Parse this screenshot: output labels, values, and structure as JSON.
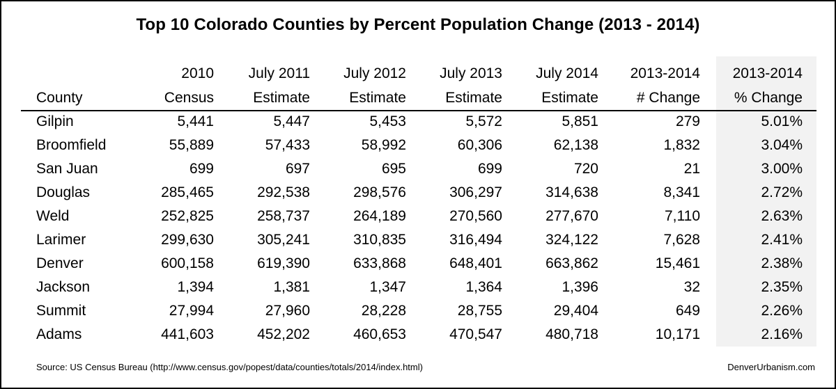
{
  "title": "Top 10 Colorado Counties by Percent Population Change (2013 - 2014)",
  "columns": [
    {
      "line1": "",
      "line2": "County"
    },
    {
      "line1": "2010",
      "line2": "Census"
    },
    {
      "line1": "July 2011",
      "line2": "Estimate"
    },
    {
      "line1": "July 2012",
      "line2": "Estimate"
    },
    {
      "line1": "July 2013",
      "line2": "Estimate"
    },
    {
      "line1": "July 2014",
      "line2": "Estimate"
    },
    {
      "line1": "2013-2014",
      "line2": "# Change"
    },
    {
      "line1": "2013-2014",
      "line2": "% Change"
    }
  ],
  "rows": [
    [
      "Gilpin",
      "5,441",
      "5,447",
      "5,453",
      "5,572",
      "5,851",
      "279",
      "5.01%"
    ],
    [
      "Broomfield",
      "55,889",
      "57,433",
      "58,992",
      "60,306",
      "62,138",
      "1,832",
      "3.04%"
    ],
    [
      "San Juan",
      "699",
      "697",
      "695",
      "699",
      "720",
      "21",
      "3.00%"
    ],
    [
      "Douglas",
      "285,465",
      "292,538",
      "298,576",
      "306,297",
      "314,638",
      "8,341",
      "2.72%"
    ],
    [
      "Weld",
      "252,825",
      "258,737",
      "264,189",
      "270,560",
      "277,670",
      "7,110",
      "2.63%"
    ],
    [
      "Larimer",
      "299,630",
      "305,241",
      "310,835",
      "316,494",
      "324,122",
      "7,628",
      "2.41%"
    ],
    [
      "Denver",
      "600,158",
      "619,390",
      "633,868",
      "648,401",
      "663,862",
      "15,461",
      "2.38%"
    ],
    [
      "Jackson",
      "1,394",
      "1,381",
      "1,347",
      "1,364",
      "1,396",
      "32",
      "2.35%"
    ],
    [
      "Summit",
      "27,994",
      "27,960",
      "28,228",
      "28,755",
      "29,404",
      "649",
      "2.26%"
    ],
    [
      "Adams",
      "441,603",
      "452,202",
      "460,653",
      "470,547",
      "480,718",
      "10,171",
      "2.16%"
    ]
  ],
  "source": "Source: US Census Bureau (http://www.census.gov/popest/data/counties/totals/2014/index.html)",
  "site": "DenverUrbanism.com",
  "colors": {
    "highlight_column_bg": "#f2f2f2",
    "text": "#000000",
    "border": "#000000"
  },
  "chart_data": {
    "type": "table",
    "title": "Top 10 Colorado Counties by Percent Population Change (2013 - 2014)",
    "columns": [
      "County",
      "2010 Census",
      "July 2011 Estimate",
      "July 2012 Estimate",
      "July 2013 Estimate",
      "July 2014 Estimate",
      "2013-2014 # Change",
      "2013-2014 % Change"
    ],
    "rows": [
      [
        "Gilpin",
        5441,
        5447,
        5453,
        5572,
        5851,
        279,
        5.01
      ],
      [
        "Broomfield",
        55889,
        57433,
        58992,
        60306,
        62138,
        1832,
        3.04
      ],
      [
        "San Juan",
        699,
        697,
        695,
        699,
        720,
        21,
        3.0
      ],
      [
        "Douglas",
        285465,
        292538,
        298576,
        306297,
        314638,
        8341,
        2.72
      ],
      [
        "Weld",
        252825,
        258737,
        264189,
        270560,
        277670,
        7110,
        2.63
      ],
      [
        "Larimer",
        299630,
        305241,
        310835,
        316494,
        324122,
        7628,
        2.41
      ],
      [
        "Denver",
        600158,
        619390,
        633868,
        648401,
        663862,
        15461,
        2.38
      ],
      [
        "Jackson",
        1394,
        1381,
        1347,
        1364,
        1396,
        32,
        2.35
      ],
      [
        "Summit",
        27994,
        27960,
        28228,
        28755,
        29404,
        649,
        2.26
      ],
      [
        "Adams",
        441603,
        452202,
        460653,
        470547,
        480718,
        10171,
        2.16
      ]
    ]
  }
}
